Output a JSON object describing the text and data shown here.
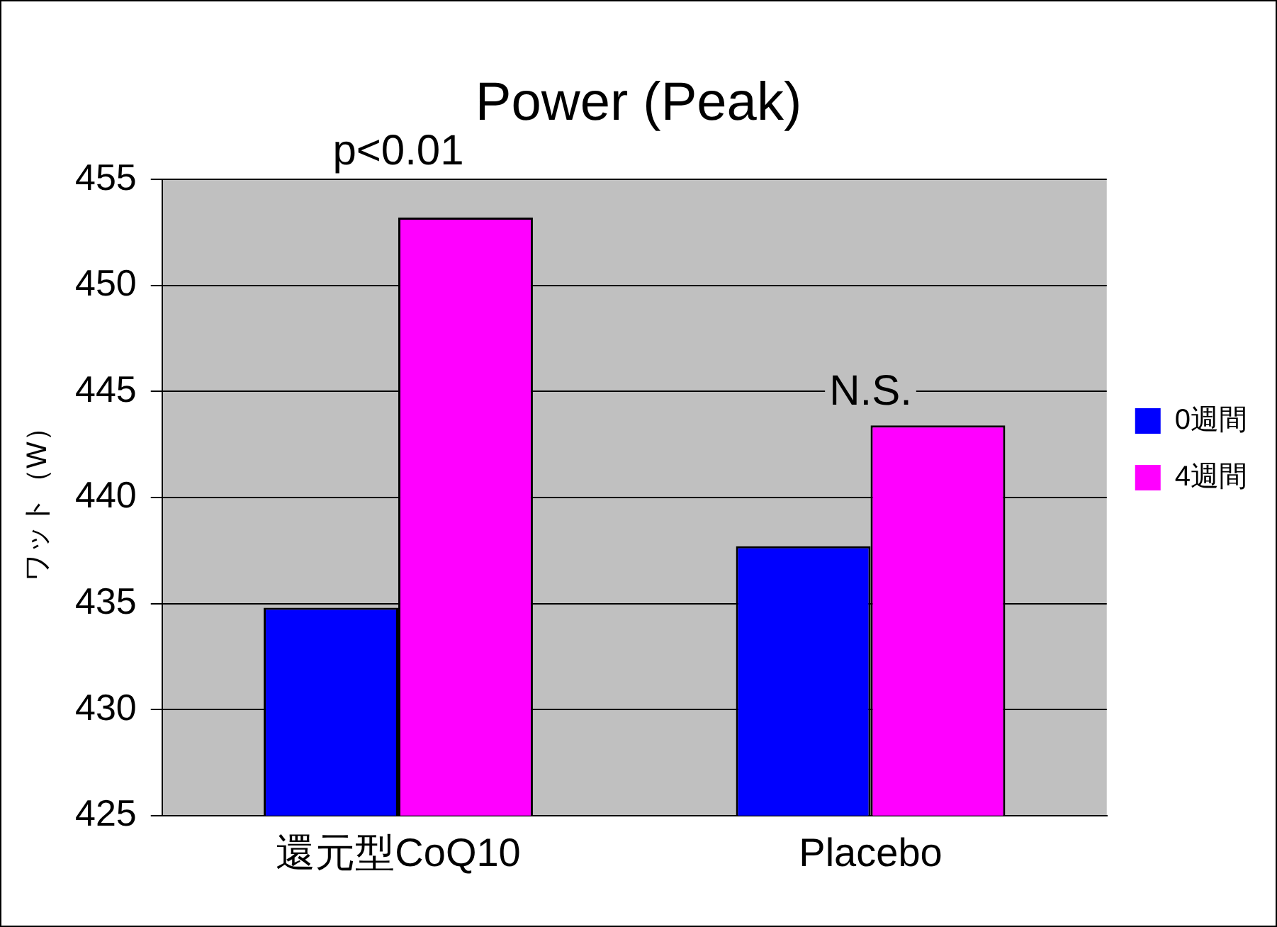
{
  "chart_data": {
    "type": "bar",
    "title": "Power (Peak)",
    "ylabel": "ワット（W）",
    "categories": [
      "還元型CoQ10",
      "Placebo"
    ],
    "series": [
      {
        "name": "0週間",
        "color": "#0000ff",
        "values": [
          434.8,
          437.7
        ]
      },
      {
        "name": "4週間",
        "color": "#ff00ff",
        "values": [
          453.2,
          443.4
        ]
      }
    ],
    "ylim": [
      425,
      455
    ],
    "yticks": [
      425,
      430,
      435,
      440,
      445,
      450,
      455
    ],
    "grid": "y",
    "legend": "right",
    "annotations": [
      "p<0.01",
      "N.S."
    ]
  }
}
